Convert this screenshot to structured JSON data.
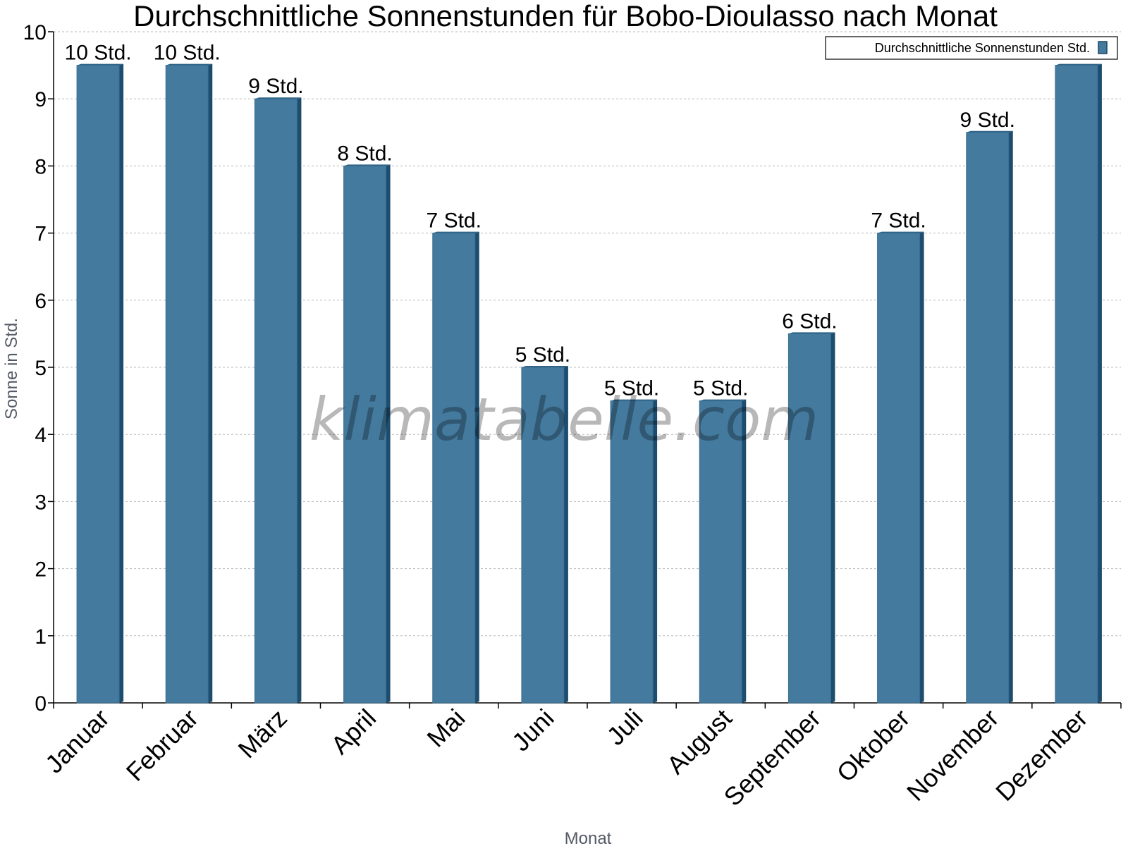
{
  "chart_data": {
    "type": "bar",
    "title": "Durchschnittliche Sonnenstunden für Bobo-Dioulasso nach Monat",
    "xlabel": "Monat",
    "ylabel": "Sonne in Std.",
    "ylim": [
      0,
      10
    ],
    "yticks": [
      "0",
      "1",
      "2",
      "3",
      "4",
      "5",
      "6",
      "7",
      "8",
      "9",
      "10"
    ],
    "grid": true,
    "legend_position": "top-right",
    "categories": [
      "Januar",
      "Februar",
      "März",
      "April",
      "Mai",
      "Juni",
      "Juli",
      "August",
      "September",
      "Oktober",
      "November",
      "Dezember"
    ],
    "series": [
      {
        "name": "Durchschnittliche Sonnenstunden Std.",
        "color": "#447a9e",
        "values": [
          9.5,
          9.5,
          9.0,
          8.0,
          7.0,
          5.0,
          4.5,
          4.5,
          5.5,
          7.0,
          8.5,
          9.5
        ],
        "labels": [
          "10 Std.",
          "10 Std.",
          "9 Std.",
          "8 Std.",
          "7 Std.",
          "5 Std.",
          "5 Std.",
          "5 Std.",
          "6 Std.",
          "7 Std.",
          "9 Std.",
          ""
        ]
      }
    ],
    "watermark": "klimatabelle.com"
  }
}
